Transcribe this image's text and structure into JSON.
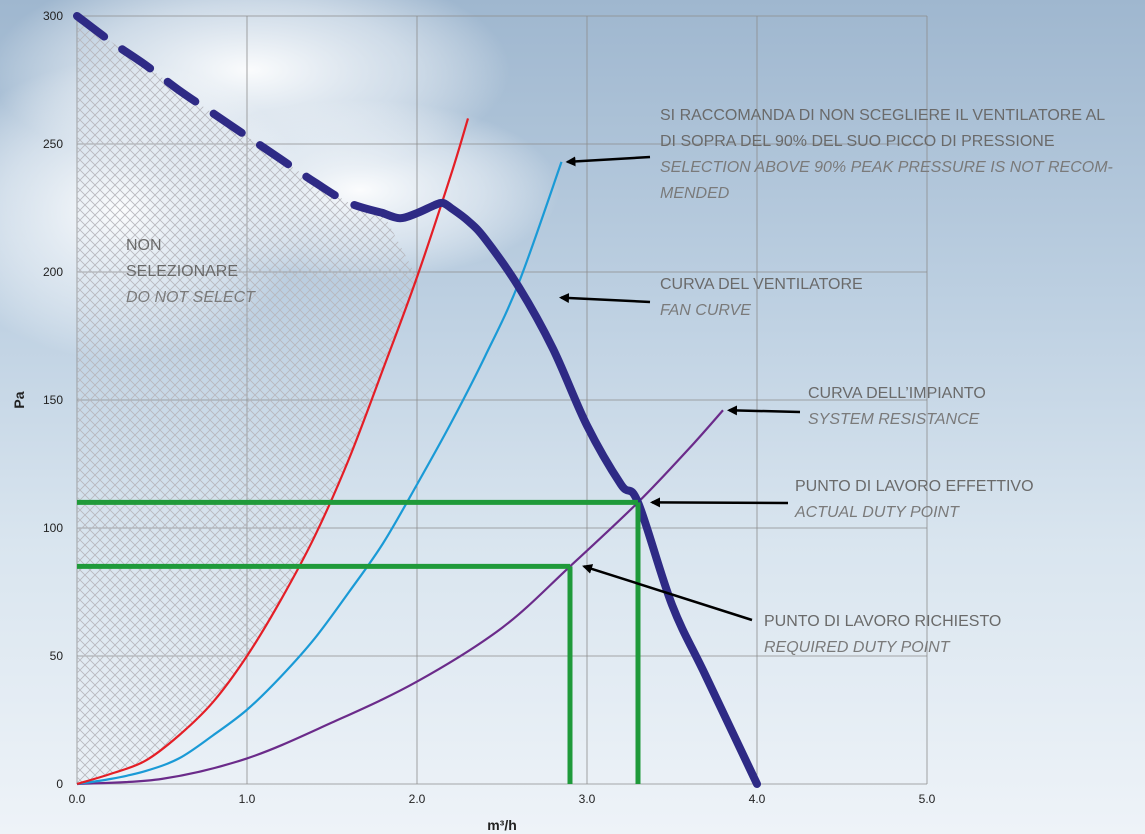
{
  "chart_data": {
    "type": "line",
    "xlabel": "m³/h",
    "ylabel": "Pa",
    "xlim": [
      0,
      5
    ],
    "ylim": [
      0,
      300
    ],
    "x_ticks": [
      "0.0",
      "1.0",
      "2.0",
      "3.0",
      "4.0",
      "5.0"
    ],
    "y_ticks": [
      "0",
      "50",
      "100",
      "150",
      "200",
      "250",
      "300"
    ],
    "grid": true,
    "colors": {
      "fan_curve": "#2e2a85",
      "red_curve": "#e41e26",
      "blue_curve": "#1a9ad6",
      "system_curve": "#6b2b8a",
      "duty_lines": "#1f9a3a",
      "arrows": "#000000",
      "hatch": "#b7b7bd"
    },
    "series": [
      {
        "key": "fan_dashed",
        "x": [
          0.0,
          0.2,
          0.4,
          0.6,
          0.8,
          1.0,
          1.2,
          1.4,
          1.6,
          1.8
        ],
        "y": [
          300,
          290,
          281,
          271,
          262,
          253,
          244,
          235,
          227,
          223
        ]
      },
      {
        "key": "fan_solid",
        "x": [
          1.8,
          1.9,
          2.0,
          2.1,
          2.15,
          2.2,
          2.3,
          2.4,
          2.6,
          2.8,
          3.0,
          3.2,
          3.3,
          3.5,
          3.7,
          4.0
        ],
        "y": [
          223,
          221,
          223,
          226,
          227,
          225,
          220,
          213,
          194,
          170,
          140,
          117,
          110,
          70,
          42,
          0
        ]
      },
      {
        "key": "red_curve",
        "x": [
          0.0,
          0.2,
          0.4,
          0.6,
          0.8,
          1.0,
          1.2,
          1.4,
          1.6,
          1.8,
          2.0,
          2.2,
          2.3
        ],
        "y": [
          0,
          4,
          9,
          19,
          32,
          50,
          72,
          97,
          127,
          162,
          198,
          238,
          260
        ]
      },
      {
        "key": "blue_curve",
        "x": [
          0.0,
          0.2,
          0.4,
          0.6,
          0.8,
          1.0,
          1.2,
          1.4,
          1.6,
          1.8,
          2.0,
          2.2,
          2.4,
          2.6,
          2.85
        ],
        "y": [
          0,
          2,
          5,
          10,
          19,
          29,
          42,
          57,
          75,
          94,
          117,
          141,
          167,
          196,
          243
        ]
      },
      {
        "key": "system_curve",
        "x": [
          0.0,
          0.5,
          1.0,
          1.5,
          2.0,
          2.5,
          2.9,
          3.3,
          3.6,
          3.8
        ],
        "y": [
          0,
          2,
          10,
          24,
          40,
          61,
          85,
          110,
          131,
          146
        ]
      }
    ],
    "duty_points": [
      {
        "x": 3.3,
        "y": 110
      },
      {
        "x": 2.9,
        "y": 85
      }
    ],
    "region_label": {
      "line1": "NON",
      "line2": "SELEZIONARE",
      "line3": "DO NOT SELECT"
    },
    "annotations": [
      {
        "main": [
          "SI RACCOMANDA DI NON SCEGLIERE IL VENTILATORE AL",
          "DI SOPRA DEL 90% DEL SUO PICCO DI PRESSIONE"
        ],
        "sub": [
          "SELECTION ABOVE 90% PEAK PRESSURE IS NOT RECOM-",
          "MENDED"
        ]
      },
      {
        "main": [
          "CURVA DEL VENTILATORE"
        ],
        "sub": [
          "FAN CURVE"
        ]
      },
      {
        "main": [
          "CURVA DELL’IMPIANTO"
        ],
        "sub": [
          "SYSTEM RESISTANCE"
        ]
      },
      {
        "main": [
          "PUNTO DI LAVORO EFFETTIVO"
        ],
        "sub": [
          "ACTUAL DUTY POINT"
        ]
      },
      {
        "main": [
          "PUNTO DI LAVORO RICHIESTO"
        ],
        "sub": [
          "REQUIRED DUTY POINT"
        ]
      }
    ]
  }
}
